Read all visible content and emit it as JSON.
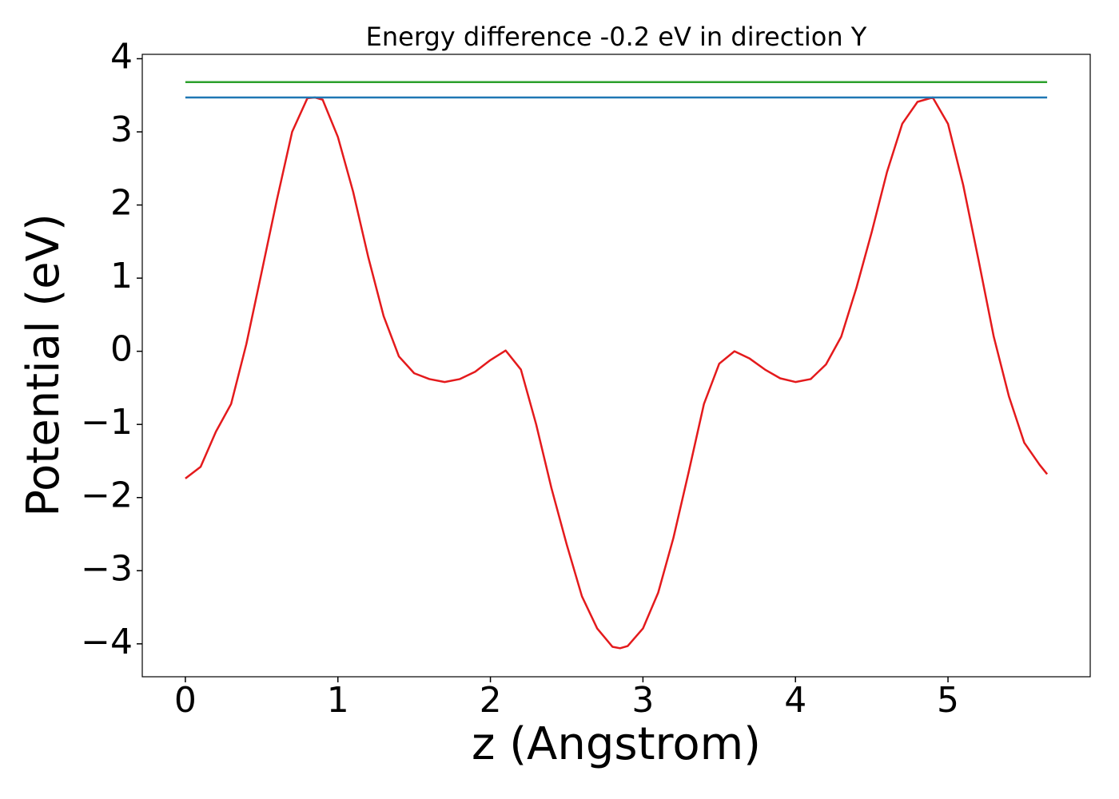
{
  "chart_data": {
    "type": "line",
    "title": "Energy difference -0.2 eV in direction Y",
    "xlabel": "z (Angstrom)",
    "ylabel": "Potential (eV)",
    "xlim": [
      -0.2825,
      5.9325
    ],
    "ylim": [
      -4.45,
      4.06
    ],
    "xticks": [
      0,
      1,
      2,
      3,
      4,
      5
    ],
    "yticks": [
      {
        "value": -4,
        "label": "−4"
      },
      {
        "value": -3,
        "label": "−3"
      },
      {
        "value": -2,
        "label": "−2"
      },
      {
        "value": -1,
        "label": "−1"
      },
      0,
      1,
      2,
      3,
      4
    ],
    "series": [
      {
        "color": "#e41a1c",
        "x": [
          0,
          0.1,
          0.2,
          0.3,
          0.4,
          0.5,
          0.6,
          0.7,
          0.8,
          0.85,
          0.9,
          1.0,
          1.1,
          1.2,
          1.3,
          1.4,
          1.5,
          1.6,
          1.7,
          1.8,
          1.9,
          2.0,
          2.1,
          2.2,
          2.3,
          2.4,
          2.5,
          2.6,
          2.7,
          2.8,
          2.85,
          2.9,
          3.0,
          3.1,
          3.2,
          3.3,
          3.4,
          3.5,
          3.6,
          3.7,
          3.8,
          3.9,
          4.0,
          4.1,
          4.2,
          4.3,
          4.4,
          4.5,
          4.6,
          4.7,
          4.8,
          4.9,
          5.0,
          5.1,
          5.2,
          5.3,
          5.4,
          5.5,
          5.6,
          5.65
        ],
        "values": [
          -1.74,
          -1.58,
          -1.1,
          -0.72,
          0.1,
          1.08,
          2.07,
          3.0,
          3.46,
          3.47,
          3.44,
          2.93,
          2.18,
          1.28,
          0.48,
          -0.07,
          -0.3,
          -0.38,
          -0.42,
          -0.38,
          -0.28,
          -0.12,
          0.01,
          -0.25,
          -1.0,
          -1.87,
          -2.64,
          -3.35,
          -3.79,
          -4.04,
          -4.06,
          -4.03,
          -3.79,
          -3.3,
          -2.55,
          -1.65,
          -0.72,
          -0.17,
          0.0,
          -0.1,
          -0.25,
          -0.37,
          -0.42,
          -0.38,
          -0.18,
          0.2,
          0.87,
          1.63,
          2.45,
          3.11,
          3.41,
          3.47,
          3.11,
          2.27,
          1.25,
          0.2,
          -0.62,
          -1.25,
          -1.55,
          -1.68
        ]
      },
      {
        "color": "#1f77b4",
        "x": [
          0,
          5.65
        ],
        "values": [
          3.47,
          3.47
        ]
      },
      {
        "color": "#2ca02c",
        "x": [
          0,
          5.65
        ],
        "values": [
          3.68,
          3.68
        ]
      }
    ]
  }
}
